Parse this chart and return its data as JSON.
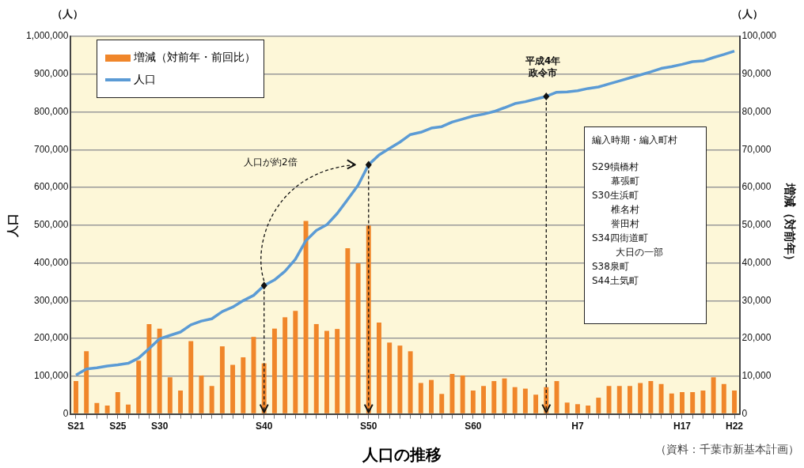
{
  "chart_data": {
    "type": "bar",
    "title": "人口の推移",
    "ylabel": "人口",
    "y2label": "増減（対前年）",
    "categories": [
      "S21",
      null,
      null,
      null,
      "S25",
      null,
      null,
      null,
      "S30",
      null,
      null,
      null,
      null,
      null,
      null,
      null,
      null,
      null,
      "S40",
      null,
      null,
      null,
      null,
      null,
      null,
      null,
      null,
      null,
      "S50",
      null,
      null,
      null,
      null,
      null,
      null,
      null,
      null,
      null,
      "S60",
      null,
      null,
      null,
      null,
      null,
      null,
      null,
      null,
      null,
      "H7",
      null,
      null,
      null,
      null,
      null,
      null,
      null,
      null,
      null,
      "H17",
      null,
      null,
      null,
      null,
      "H22"
    ],
    "series": [
      {
        "name": "増減（対前年・前回比）",
        "type": "bar",
        "axis": "y2",
        "color": "#f0862a",
        "values": [
          8700,
          16600,
          2900,
          2200,
          5800,
          2500,
          14100,
          23800,
          22600,
          9700,
          6200,
          19300,
          10200,
          7400,
          17900,
          13000,
          15000,
          20400,
          13400,
          22600,
          25600,
          27300,
          51100,
          23800,
          22000,
          22500,
          43900,
          39900,
          49900,
          24200,
          18900,
          18100,
          16600,
          8200,
          9000,
          5300,
          10600,
          10200,
          6200,
          7400,
          8700,
          9400,
          7100,
          6700,
          5100,
          7100,
          8700,
          3000,
          2600,
          2200,
          4300,
          7400,
          7400,
          7400,
          8200,
          8700,
          7900,
          5400,
          5800,
          5800,
          6200,
          9700,
          7900,
          6200
        ]
      },
      {
        "name": "人口",
        "type": "line",
        "axis": "y",
        "color": "#5b9bd5",
        "values": [
          103000,
          119000,
          122000,
          127000,
          130000,
          134000,
          148000,
          173000,
          199000,
          208000,
          217000,
          236000,
          246000,
          252000,
          271000,
          283000,
          300000,
          314000,
          340000,
          355000,
          378000,
          410000,
          459000,
          486000,
          501000,
          531000,
          568000,
          606000,
          660000,
          686000,
          703000,
          720000,
          740000,
          746000,
          757000,
          761000,
          773000,
          781000,
          789000,
          794000,
          801000,
          811000,
          822000,
          827000,
          834000,
          841000,
          852000,
          853000,
          856000,
          862000,
          866000,
          874000,
          882000,
          890000,
          898000,
          906000,
          915000,
          920000,
          926000,
          933000,
          935000,
          944000,
          952000,
          961000
        ]
      }
    ],
    "ylim": [
      0,
      1000000
    ],
    "yticks": [
      0,
      {
        "value": 100000,
        "label": "100,000"
      },
      {
        "value": 200000,
        "label": "200,000"
      },
      {
        "value": 300000,
        "label": "300,000"
      },
      {
        "value": 400000,
        "label": "400,000"
      },
      {
        "value": 500000,
        "label": "500,000"
      },
      {
        "value": 600000,
        "label": "600,000"
      },
      {
        "value": 700000,
        "label": "700,000"
      },
      {
        "value": 800000,
        "label": "800,000"
      },
      {
        "value": 900000,
        "label": "900,000"
      },
      {
        "value": 1000000,
        "label": "1,000,000"
      }
    ],
    "y2lim": [
      0,
      100000
    ],
    "y2ticks": [
      0,
      {
        "value": 10000,
        "label": "10,000"
      },
      {
        "value": 20000,
        "label": "20,000"
      },
      {
        "value": 30000,
        "label": "30,000"
      },
      {
        "value": 40000,
        "label": "40,000"
      },
      {
        "value": 50000,
        "label": "50,000"
      },
      {
        "value": 60000,
        "label": "60,000"
      },
      {
        "value": 70000,
        "label": "70,000"
      },
      {
        "value": 80000,
        "label": "80,000"
      },
      {
        "value": 90000,
        "label": "90,000"
      },
      {
        "value": 100000,
        "label": "100,000"
      }
    ],
    "grid": "y",
    "legend": "top left",
    "annotations": [
      "（人）",
      "（人）",
      "人口が約2倍",
      "平成4年",
      "政令市",
      "編入時期・編入町村",
      "S29犢橋村",
      "幕張町",
      "S30生浜町",
      "椎名村",
      "誉田村",
      "S34四街道町",
      "大日の一部",
      "S38泉町",
      "S44土気町",
      "（資料：千葉市新基本計画）"
    ]
  }
}
